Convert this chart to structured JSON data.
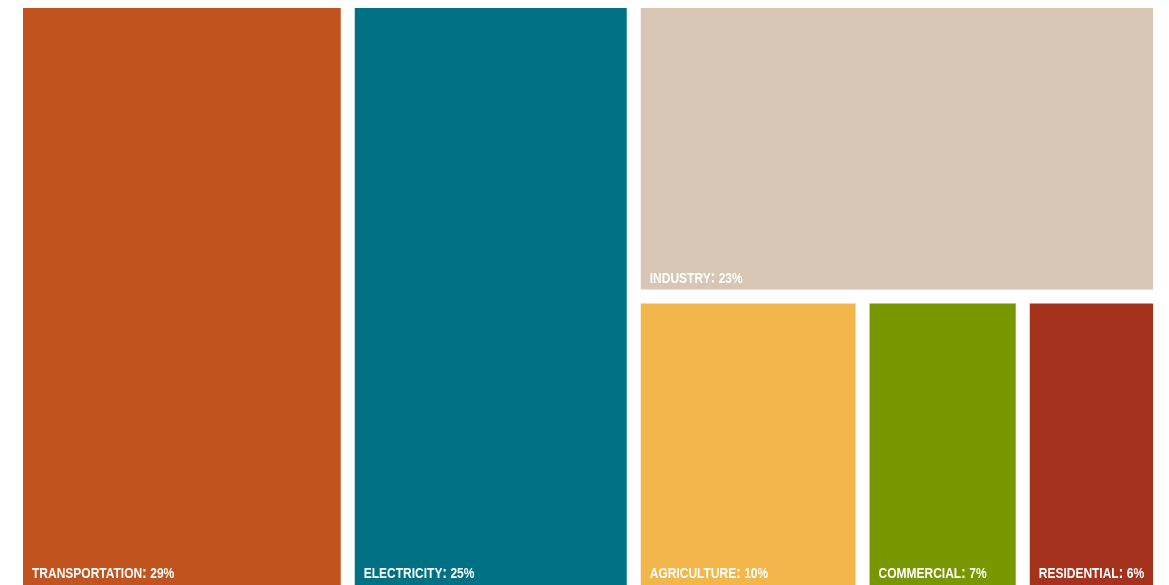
{
  "chart_data": {
    "type": "other",
    "categories": [
      "TRANSPORTATION",
      "ELECTRICITY",
      "INDUSTRY",
      "AGRICULTURE",
      "COMMERCIAL",
      "RESIDENTIAL"
    ],
    "values": [
      29,
      25,
      23,
      10,
      7,
      6
    ],
    "value_labels": [
      "29%",
      "25%",
      "23%",
      "10%",
      "7%",
      "6%"
    ],
    "colors": [
      "#c1541e",
      "#007185",
      "#d8c6b4",
      "#f3b64b",
      "#789600",
      "#a4321c"
    ],
    "data_labels": true
  }
}
